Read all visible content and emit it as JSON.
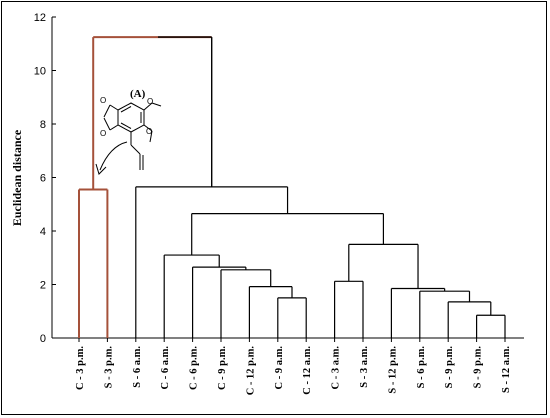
{
  "chart_data": {
    "type": "dendrogram",
    "ylabel": "Euclidean distance",
    "ylim": [
      0,
      12
    ],
    "yticks": [
      "0",
      "2",
      "4",
      "6",
      "8",
      "10",
      "12"
    ],
    "leaves": [
      "C - 3 p.m.",
      "S - 3 p.m.",
      "S - 6 a.m.",
      "C - 6 a.m.",
      "C - 6 p.m.",
      "C - 9 p.m.",
      "C - 12 p.m.",
      "C - 9 a.m.",
      "C - 12 a.m.",
      "C - 3 a.m.",
      "S - 3 a.m.",
      "S - 12 p.m.",
      "S - 6 p.m.",
      "S - 9 p.m.",
      "S - 9 p.m.",
      "S - 12 a.m."
    ],
    "merges": [
      {
        "left": 0,
        "right": 1,
        "height": 5.55,
        "highlight": true
      },
      {
        "left": 7,
        "right": 8,
        "height": 1.5
      },
      {
        "left": 14,
        "right": 15,
        "height": 0.85
      },
      {
        "left": 13,
        "right": "m2",
        "height": 1.35
      },
      {
        "left": 12,
        "right": "m3",
        "height": 1.75
      },
      {
        "left": 6,
        "right": "m1",
        "height": 1.92
      },
      {
        "left": 11,
        "right": "m4",
        "height": 1.85
      },
      {
        "left": 9,
        "right": 10,
        "height": 2.12
      },
      {
        "left": 5,
        "right": "m5",
        "height": 2.55
      },
      {
        "left": 4,
        "right": "m8",
        "height": 2.65
      },
      {
        "left": 3,
        "right": "m9",
        "height": 3.1
      },
      {
        "left": "m7",
        "right": "m6",
        "height": 3.5
      },
      {
        "left": "m10",
        "right": "m11",
        "height": 4.65
      },
      {
        "left": 2,
        "right": "m12",
        "height": 5.65
      },
      {
        "left": "m0",
        "right": "m13",
        "height": 11.25,
        "highlight": true
      }
    ],
    "highlight_color": "#a5513a",
    "annotation": "(A)"
  }
}
